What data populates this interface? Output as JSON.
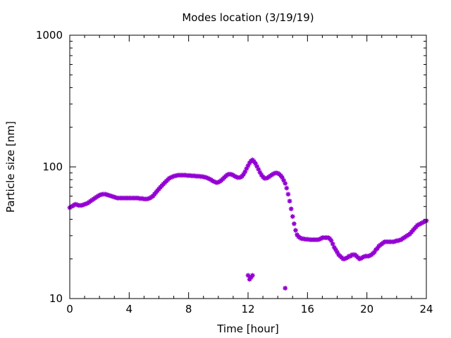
{
  "chart_data": {
    "type": "scatter",
    "title": "Modes location (3/19/19)",
    "xlabel": "Time [hour]",
    "ylabel": "Particle size [nm]",
    "xlim": [
      0,
      24
    ],
    "ylim": [
      10,
      1000
    ],
    "yscale": "log",
    "xticks": [
      0,
      4,
      8,
      12,
      16,
      20,
      24
    ],
    "xtick_labels": [
      "0",
      "4",
      "8",
      "12",
      "16",
      "20",
      "24"
    ],
    "yticks": [
      10,
      100,
      1000
    ],
    "ytick_labels": [
      "10",
      "100",
      "1000"
    ],
    "grid": false,
    "legend": "none",
    "marker_color": "#9400d3",
    "series": [
      {
        "points": [
          [
            0.0,
            49
          ],
          [
            0.1,
            50
          ],
          [
            0.2,
            50.5
          ],
          [
            0.3,
            51.5
          ],
          [
            0.4,
            52
          ],
          [
            0.5,
            51.5
          ],
          [
            0.6,
            51
          ],
          [
            0.7,
            51
          ],
          [
            0.8,
            51
          ],
          [
            0.9,
            51.5
          ],
          [
            1.0,
            52
          ],
          [
            1.1,
            52.5
          ],
          [
            1.2,
            53
          ],
          [
            1.3,
            54
          ],
          [
            1.4,
            55
          ],
          [
            1.5,
            56
          ],
          [
            1.6,
            57
          ],
          [
            1.7,
            58
          ],
          [
            1.8,
            59
          ],
          [
            1.9,
            60
          ],
          [
            2.0,
            61
          ],
          [
            2.1,
            61.5
          ],
          [
            2.2,
            62
          ],
          [
            2.3,
            62
          ],
          [
            2.4,
            62
          ],
          [
            2.5,
            61.5
          ],
          [
            2.6,
            61
          ],
          [
            2.7,
            60.5
          ],
          [
            2.8,
            60
          ],
          [
            2.9,
            59.5
          ],
          [
            3.0,
            59
          ],
          [
            3.1,
            58.5
          ],
          [
            3.2,
            58
          ],
          [
            3.3,
            58
          ],
          [
            3.4,
            58
          ],
          [
            3.5,
            58
          ],
          [
            3.6,
            58
          ],
          [
            3.7,
            58
          ],
          [
            3.8,
            58
          ],
          [
            3.9,
            58
          ],
          [
            4.0,
            58
          ],
          [
            4.1,
            58
          ],
          [
            4.2,
            58
          ],
          [
            4.3,
            58
          ],
          [
            4.4,
            58
          ],
          [
            4.5,
            58
          ],
          [
            4.6,
            58
          ],
          [
            4.7,
            57.5
          ],
          [
            4.8,
            57.5
          ],
          [
            4.9,
            57.5
          ],
          [
            5.0,
            57
          ],
          [
            5.1,
            57
          ],
          [
            5.2,
            57
          ],
          [
            5.3,
            57.5
          ],
          [
            5.4,
            58
          ],
          [
            5.5,
            59
          ],
          [
            5.6,
            60
          ],
          [
            5.7,
            62
          ],
          [
            5.8,
            64
          ],
          [
            5.9,
            66
          ],
          [
            6.0,
            68
          ],
          [
            6.1,
            70
          ],
          [
            6.2,
            72
          ],
          [
            6.3,
            74
          ],
          [
            6.4,
            76
          ],
          [
            6.5,
            78
          ],
          [
            6.6,
            80
          ],
          [
            6.7,
            82
          ],
          [
            6.8,
            83
          ],
          [
            6.9,
            84
          ],
          [
            7.0,
            85
          ],
          [
            7.1,
            85.5
          ],
          [
            7.2,
            86
          ],
          [
            7.3,
            86.5
          ],
          [
            7.4,
            86.5
          ],
          [
            7.5,
            86.5
          ],
          [
            7.6,
            86.5
          ],
          [
            7.7,
            86.5
          ],
          [
            7.8,
            86.5
          ],
          [
            7.9,
            86
          ],
          [
            8.0,
            86
          ],
          [
            8.1,
            86
          ],
          [
            8.2,
            85.5
          ],
          [
            8.3,
            85.5
          ],
          [
            8.4,
            85.5
          ],
          [
            8.5,
            85
          ],
          [
            8.6,
            85
          ],
          [
            8.7,
            85
          ],
          [
            8.8,
            84.5
          ],
          [
            8.9,
            84.5
          ],
          [
            9.0,
            84
          ],
          [
            9.1,
            83.5
          ],
          [
            9.2,
            83
          ],
          [
            9.3,
            82
          ],
          [
            9.4,
            81
          ],
          [
            9.5,
            80
          ],
          [
            9.6,
            78.5
          ],
          [
            9.7,
            77.5
          ],
          [
            9.8,
            76.5
          ],
          [
            9.9,
            76
          ],
          [
            10.0,
            76.5
          ],
          [
            10.1,
            77.5
          ],
          [
            10.2,
            79
          ],
          [
            10.3,
            81
          ],
          [
            10.4,
            83
          ],
          [
            10.5,
            85
          ],
          [
            10.6,
            87
          ],
          [
            10.7,
            88
          ],
          [
            10.8,
            88
          ],
          [
            10.9,
            87.5
          ],
          [
            11.0,
            86.5
          ],
          [
            11.1,
            85
          ],
          [
            11.2,
            84
          ],
          [
            11.3,
            83
          ],
          [
            11.4,
            83
          ],
          [
            11.5,
            83.5
          ],
          [
            11.6,
            85
          ],
          [
            11.7,
            88
          ],
          [
            11.8,
            92
          ],
          [
            11.9,
            97
          ],
          [
            12.0,
            102
          ],
          [
            12.1,
            107
          ],
          [
            12.2,
            111
          ],
          [
            12.3,
            113
          ],
          [
            12.4,
            110
          ],
          [
            12.5,
            106
          ],
          [
            12.6,
            101
          ],
          [
            12.7,
            96
          ],
          [
            12.8,
            91
          ],
          [
            12.9,
            87
          ],
          [
            13.0,
            84
          ],
          [
            13.1,
            82
          ],
          [
            13.2,
            82
          ],
          [
            13.3,
            82.5
          ],
          [
            13.4,
            84
          ],
          [
            13.5,
            85.5
          ],
          [
            13.6,
            87
          ],
          [
            13.7,
            88.5
          ],
          [
            13.8,
            89.5
          ],
          [
            13.9,
            90
          ],
          [
            14.0,
            89.5
          ],
          [
            14.1,
            88
          ],
          [
            14.2,
            86
          ],
          [
            14.3,
            83
          ],
          [
            14.4,
            79
          ],
          [
            14.5,
            75
          ],
          [
            14.6,
            69
          ],
          [
            14.7,
            62
          ],
          [
            14.8,
            55
          ],
          [
            14.9,
            48
          ],
          [
            15.0,
            42
          ],
          [
            15.1,
            37
          ],
          [
            15.2,
            33
          ],
          [
            15.3,
            30.5
          ],
          [
            15.4,
            29.5
          ],
          [
            15.5,
            29
          ],
          [
            15.6,
            28.5
          ],
          [
            15.7,
            28.5
          ],
          [
            15.8,
            28.3
          ],
          [
            15.9,
            28.2
          ],
          [
            16.0,
            28.2
          ],
          [
            16.1,
            28.1
          ],
          [
            16.2,
            28
          ],
          [
            16.3,
            28
          ],
          [
            16.4,
            28
          ],
          [
            16.5,
            28
          ],
          [
            16.6,
            28
          ],
          [
            16.7,
            28
          ],
          [
            16.8,
            28.2
          ],
          [
            16.9,
            28.5
          ],
          [
            17.0,
            29
          ],
          [
            17.1,
            29
          ],
          [
            17.2,
            29
          ],
          [
            17.3,
            29
          ],
          [
            17.4,
            29
          ],
          [
            17.5,
            28.5
          ],
          [
            17.6,
            27.5
          ],
          [
            17.7,
            26
          ],
          [
            17.8,
            24.5
          ],
          [
            17.9,
            23.5
          ],
          [
            18.0,
            22.5
          ],
          [
            18.1,
            21.5
          ],
          [
            18.2,
            21
          ],
          [
            18.3,
            20.5
          ],
          [
            18.4,
            20
          ],
          [
            18.5,
            20
          ],
          [
            18.6,
            20.3
          ],
          [
            18.7,
            20.5
          ],
          [
            18.8,
            21
          ],
          [
            18.9,
            21
          ],
          [
            19.0,
            21.5
          ],
          [
            19.1,
            21.5
          ],
          [
            19.2,
            21.5
          ],
          [
            19.3,
            21
          ],
          [
            19.4,
            20.5
          ],
          [
            19.5,
            20
          ],
          [
            19.6,
            20.2
          ],
          [
            19.7,
            20.5
          ],
          [
            19.8,
            20.8
          ],
          [
            19.9,
            21
          ],
          [
            20.0,
            21
          ],
          [
            20.1,
            21
          ],
          [
            20.2,
            21.2
          ],
          [
            20.3,
            21.5
          ],
          [
            20.4,
            22
          ],
          [
            20.5,
            22.5
          ],
          [
            20.6,
            23.5
          ],
          [
            20.7,
            24
          ],
          [
            20.8,
            25
          ],
          [
            20.9,
            25.5
          ],
          [
            21.0,
            26
          ],
          [
            21.1,
            26.5
          ],
          [
            21.2,
            27
          ],
          [
            21.3,
            27
          ],
          [
            21.4,
            27
          ],
          [
            21.5,
            27
          ],
          [
            21.6,
            27
          ],
          [
            21.7,
            27
          ],
          [
            21.8,
            27
          ],
          [
            21.9,
            27.2
          ],
          [
            22.0,
            27.5
          ],
          [
            22.1,
            27.5
          ],
          [
            22.2,
            27.8
          ],
          [
            22.3,
            28
          ],
          [
            22.4,
            28.5
          ],
          [
            22.5,
            29
          ],
          [
            22.6,
            29.5
          ],
          [
            22.7,
            30
          ],
          [
            22.8,
            30.5
          ],
          [
            22.9,
            31
          ],
          [
            23.0,
            32
          ],
          [
            23.1,
            33
          ],
          [
            23.2,
            34
          ],
          [
            23.3,
            35
          ],
          [
            23.4,
            36
          ],
          [
            23.5,
            36.5
          ],
          [
            23.6,
            37
          ],
          [
            23.7,
            37.5
          ],
          [
            23.8,
            38
          ],
          [
            23.9,
            38.5
          ],
          [
            24.0,
            39
          ],
          [
            12.0,
            15
          ],
          [
            12.1,
            14
          ],
          [
            12.2,
            14.5
          ],
          [
            12.3,
            15
          ],
          [
            14.5,
            12
          ]
        ]
      }
    ]
  }
}
